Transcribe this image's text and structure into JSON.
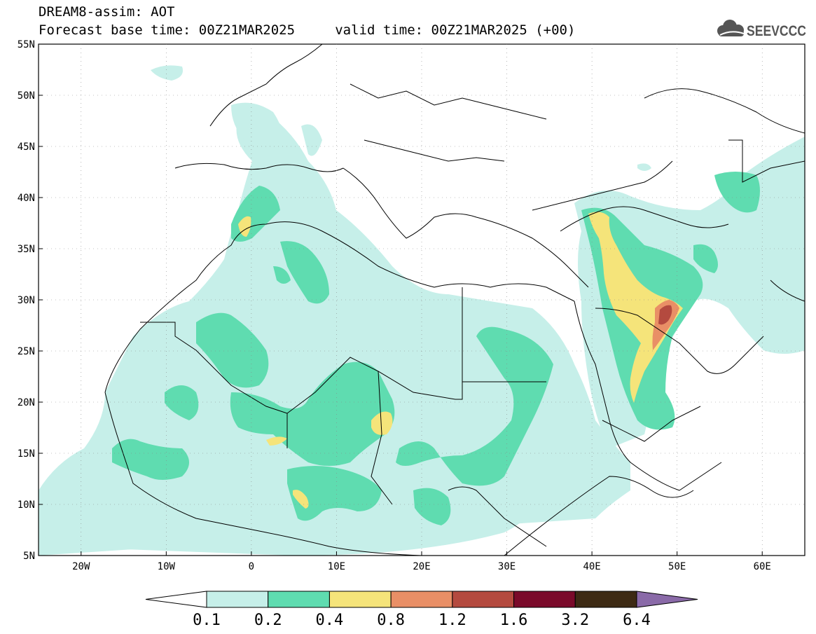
{
  "title": {
    "line1": "DREAM8-assim: AOT",
    "line2": "Forecast base time: 00Z21MAR2025     valid time: 00Z21MAR2025 (+00)"
  },
  "logo": {
    "text": "SEEVCCC",
    "icon": "cloud-icon"
  },
  "map": {
    "lat_labels": [
      "55N",
      "50N",
      "45N",
      "40N",
      "35N",
      "30N",
      "25N",
      "20N",
      "15N",
      "10N",
      "5N"
    ],
    "lon_labels": [
      "20W",
      "10W",
      "0",
      "10E",
      "20E",
      "30E",
      "40E",
      "50E",
      "60E"
    ],
    "lon_range": [
      -25,
      65
    ],
    "lat_range": [
      5,
      55
    ]
  },
  "colorbar": {
    "levels": [
      "0.1",
      "0.2",
      "0.4",
      "0.8",
      "1.2",
      "1.6",
      "3.2",
      "6.4"
    ],
    "colors": [
      "#ffffff",
      "#c6efe9",
      "#5fdcb0",
      "#f5e47a",
      "#e98f66",
      "#b44a3f",
      "#7a0a2a",
      "#3d2a14",
      "#8a6aa8"
    ]
  },
  "colors": {
    "aot_01_02": "#c6efe9",
    "aot_02_04": "#5fdcb0",
    "aot_04_08": "#f5e47a",
    "aot_08_12": "#e98f66",
    "aot_12_16": "#b44a3f",
    "border": "#000000"
  }
}
